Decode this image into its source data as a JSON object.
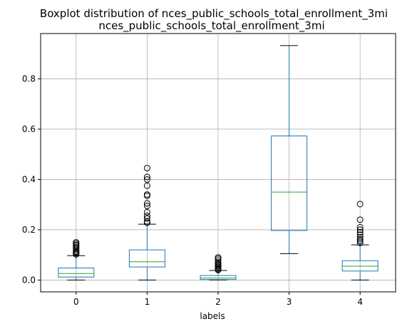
{
  "chart_data": {
    "type": "boxplot",
    "title": "Boxplot distribution of nces_public_schools_total_enrollment_3mi",
    "subtitle": "nces_public_schools_total_enrollment_3mi",
    "xlabel": "labels",
    "ylabel": "",
    "categories": [
      "0",
      "1",
      "2",
      "3",
      "4"
    ],
    "ylim": [
      -0.047,
      0.98
    ],
    "yticks": [
      0.0,
      0.2,
      0.4,
      0.6,
      0.8
    ],
    "ytick_labels": [
      "0.0",
      "0.2",
      "0.4",
      "0.6",
      "0.8"
    ],
    "grid": true,
    "colors": {
      "box": "#1f77b4",
      "median": "#2ca02c",
      "whisker": "#1f77b4",
      "cap": "#000000",
      "flier": "#000000",
      "grid": "#b0b0b0"
    },
    "boxes": [
      {
        "label": "0",
        "whisker_low": 0.0,
        "q1": 0.012,
        "median": 0.026,
        "q3": 0.048,
        "whisker_high": 0.097,
        "outliers": [
          0.102,
          0.106,
          0.11,
          0.113,
          0.118,
          0.124,
          0.13,
          0.136,
          0.14,
          0.145,
          0.15
        ]
      },
      {
        "label": "1",
        "whisker_low": 0.0,
        "q1": 0.052,
        "median": 0.073,
        "q3": 0.12,
        "whisker_high": 0.222,
        "outliers": [
          0.228,
          0.233,
          0.245,
          0.255,
          0.27,
          0.295,
          0.305,
          0.335,
          0.34,
          0.375,
          0.4,
          0.41,
          0.445
        ]
      },
      {
        "label": "2",
        "whisker_low": 0.0,
        "q1": 0.002,
        "median": 0.008,
        "q3": 0.018,
        "whisker_high": 0.038,
        "outliers": [
          0.04,
          0.043,
          0.047,
          0.052,
          0.056,
          0.06,
          0.065,
          0.07,
          0.078,
          0.085,
          0.09
        ]
      },
      {
        "label": "3",
        "whisker_low": 0.105,
        "q1": 0.197,
        "median": 0.35,
        "q3": 0.573,
        "whisker_high": 0.932,
        "outliers": []
      },
      {
        "label": "4",
        "whisker_low": 0.0,
        "q1": 0.036,
        "median": 0.055,
        "q3": 0.077,
        "whisker_high": 0.14,
        "outliers": [
          0.148,
          0.155,
          0.162,
          0.17,
          0.18,
          0.19,
          0.2,
          0.21,
          0.24,
          0.302
        ]
      }
    ]
  }
}
